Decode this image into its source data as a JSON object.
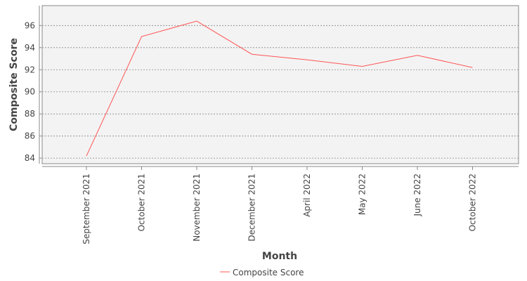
{
  "chart_data": {
    "type": "line",
    "title": "",
    "xlabel": "Month",
    "ylabel": "Composite Score",
    "categories": [
      "September 2021",
      "October 2021",
      "November 2021",
      "December 2021",
      "April 2022",
      "May 2022",
      "June 2022",
      "October 2022"
    ],
    "series": [
      {
        "name": "Composite Score",
        "values": [
          84.2,
          95.0,
          96.4,
          93.4,
          92.9,
          92.3,
          93.3,
          92.2
        ],
        "color": "#ff5555"
      }
    ],
    "ylim": [
      83.5,
      97.8
    ],
    "yticks": [
      84,
      86,
      88,
      90,
      92,
      94,
      96
    ],
    "grid": true,
    "legend_position": "bottom-center",
    "colors": {
      "plot_background": "#f3f3f3",
      "grid": "#888888",
      "axis": "#888888",
      "text": "#444444"
    }
  }
}
